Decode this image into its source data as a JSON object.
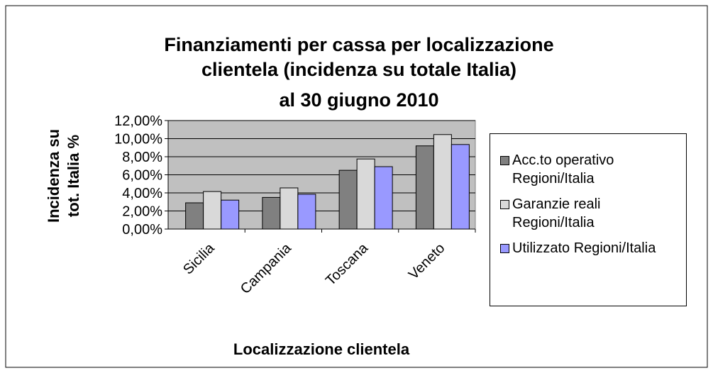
{
  "chart_data": {
    "type": "bar",
    "title": [
      "Finanziamenti per cassa per localizzazione",
      "clientela (incidenza su totale Italia)",
      "al 30 giugno 2010"
    ],
    "y_label": [
      "Incidenza su",
      "tot. Italia %"
    ],
    "x_label": "Localizzazione clientela",
    "categories": [
      "Sicilia",
      "Campania",
      "Toscana",
      "Veneto"
    ],
    "series": [
      {
        "name": "Acc.to operativo Regioni/Italia",
        "color": "#808080",
        "values": [
          2.9,
          3.5,
          6.5,
          9.2
        ]
      },
      {
        "name": "Garanzie reali Regioni/Italia",
        "color": "#d9d9d9",
        "values": [
          4.15,
          4.55,
          7.75,
          10.45
        ]
      },
      {
        "name": "Utilizzato Regioni/Italia",
        "color": "#9999ff",
        "values": [
          3.2,
          3.85,
          6.9,
          9.35
        ]
      }
    ],
    "ylim": [
      0,
      12
    ],
    "yticks": [
      {
        "value": 0,
        "label": "0,00%"
      },
      {
        "value": 2,
        "label": "2,00%"
      },
      {
        "value": 4,
        "label": "4,00%"
      },
      {
        "value": 6,
        "label": "6,00%"
      },
      {
        "value": 8,
        "label": "8,00%"
      },
      {
        "value": 10,
        "label": "10,00%"
      },
      {
        "value": 12,
        "label": "12,00%"
      }
    ],
    "grid": true
  }
}
